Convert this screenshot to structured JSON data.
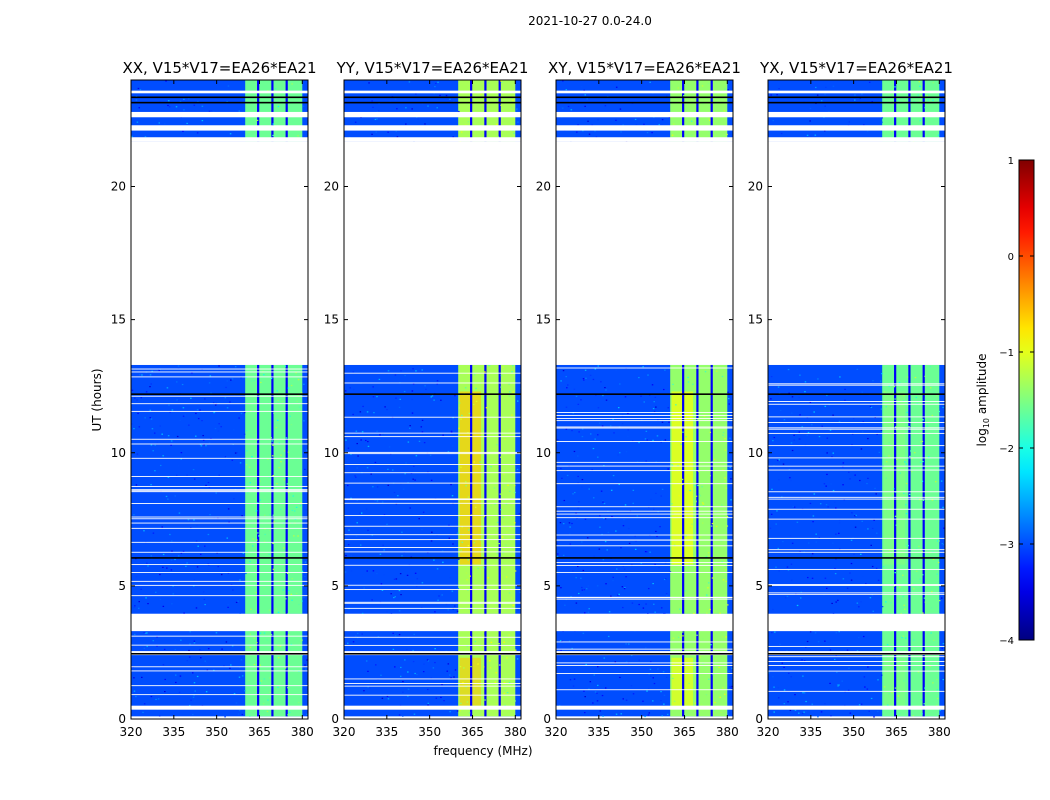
{
  "suptitle": "2021-10-27 0.0-24.0",
  "chart_data": {
    "type": "heatmap",
    "suptitle": "2021-10-27 0.0-24.0",
    "ylabel": "UT (hours)",
    "xlabel": "frequency (MHz)",
    "xlim": [
      320,
      382
    ],
    "ylim": [
      0,
      24
    ],
    "xticks": [
      320,
      335,
      350,
      365,
      380
    ],
    "yticks": [
      0,
      5,
      10,
      15,
      20
    ],
    "panels": [
      {
        "title": "XX, V15*V17=EA26*EA21",
        "band_level": -1.6,
        "bright_level": -1.6
      },
      {
        "title": "YY, V15*V17=EA26*EA21",
        "band_level": -1.3,
        "bright_level": -0.6
      },
      {
        "title": "XY, V15*V17=EA26*EA21",
        "band_level": -1.4,
        "bright_level": -0.9
      },
      {
        "title": "YX, V15*V17=EA26*EA21",
        "band_level": -1.6,
        "bright_level": -1.5
      }
    ],
    "background_level": -3.0,
    "rfi_band_mhz": [
      360,
      380
    ],
    "rfi_gaps_mhz": [
      364.5,
      369.5,
      374.5
    ],
    "data_ranges_hours": [
      [
        0.1,
        3.7
      ],
      [
        3.95,
        13.3
      ],
      [
        21.7,
        24
      ]
    ],
    "blank_ranges_hours": [
      [
        0.35,
        0.5
      ],
      [
        2.4,
        2.55
      ],
      [
        3.3,
        3.95
      ],
      [
        13.3,
        21.7
      ],
      [
        22.6,
        22.8
      ]
    ],
    "dark_lines_hours": [
      2.45,
      6.05,
      12.2,
      23.15,
      23.35
    ],
    "colorbar": {
      "label": "log10 amplitude",
      "label_main": "log",
      "label_sub": "10",
      "label_rest": " amplitude",
      "range": [
        -4,
        1
      ],
      "ticks": [
        1,
        0,
        -1,
        -2,
        -3,
        -4
      ],
      "tick_labels": [
        "1",
        "0",
        "−1",
        "−2",
        "−3",
        "−4"
      ],
      "colormap": "jet"
    }
  }
}
